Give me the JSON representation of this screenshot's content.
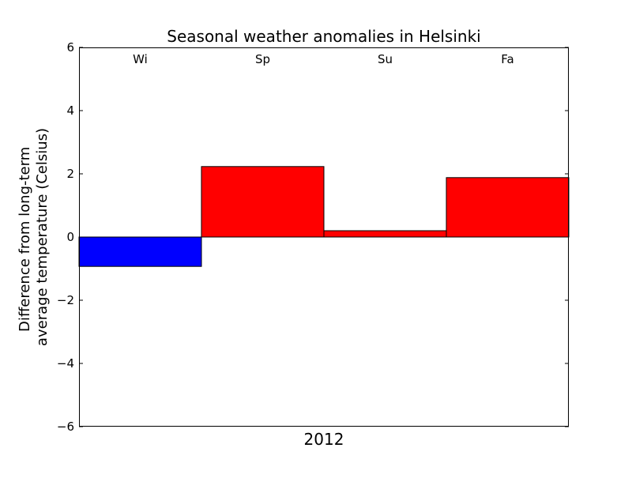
{
  "chart_data": {
    "type": "bar",
    "title": "Seasonal weather anomalies in Helsinki",
    "xlabel": "2012",
    "ylabel_lines": [
      "Difference from long-term",
      "average temperature (Celsius)"
    ],
    "categories": [
      "Wi",
      "Sp",
      "Su",
      "Fa"
    ],
    "values": [
      -0.93,
      2.23,
      0.2,
      1.88
    ],
    "ylim": [
      -6,
      6
    ],
    "yticks": [
      -6,
      -4,
      -2,
      0,
      2,
      4,
      6
    ],
    "ytick_labels": [
      "−6",
      "−4",
      "−2",
      "0",
      "2",
      "4",
      "6"
    ],
    "grid": false,
    "positive_color": "#ff0000",
    "negative_color": "#0000ff"
  }
}
